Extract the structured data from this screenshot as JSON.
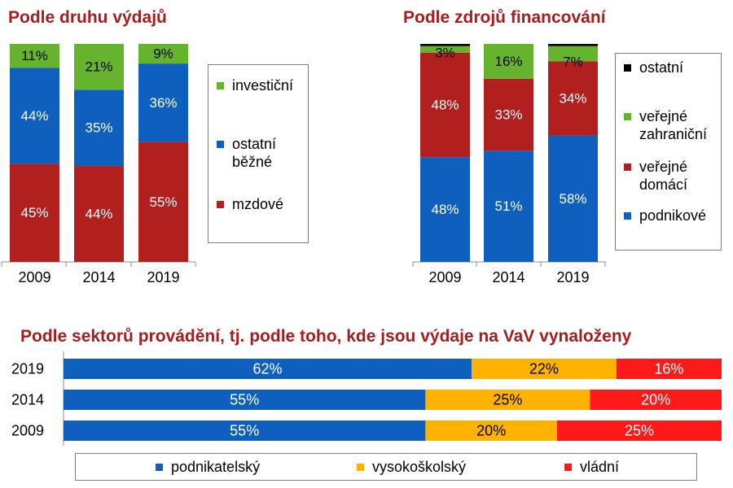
{
  "colors": {
    "title": "#a31f1f",
    "investicni": "#66b32e",
    "ostatni_bezne": "#0f5fbf",
    "mzdove": "#b21f1f",
    "ostatni": "#000000",
    "verejne_zahranicni": "#66b32e",
    "verejne_domaci": "#b21f1f",
    "podnikove": "#0f5fbf",
    "podnikatelsky": "#0f5fbf",
    "vysokoskolsky": "#ffb300",
    "vladni": "#ff1a1a"
  },
  "chart_data": [
    {
      "type": "bar",
      "stacked": true,
      "orientation": "vertical",
      "title": "Podle druhu výdajů",
      "categories": [
        "2009",
        "2014",
        "2019"
      ],
      "ylim": [
        0,
        100
      ],
      "legend_position": "right",
      "series": [
        {
          "name": "mzdové",
          "values": [
            45,
            44,
            55
          ],
          "labels": [
            "45%",
            "44%",
            "55%"
          ],
          "color": "#b21f1f"
        },
        {
          "name": "ostatní běžné",
          "values": [
            44,
            35,
            36
          ],
          "labels": [
            "44%",
            "35%",
            "36%"
          ],
          "color": "#0f5fbf"
        },
        {
          "name": "investiční",
          "values": [
            11,
            21,
            9
          ],
          "labels": [
            "11%",
            "21%",
            "9%"
          ],
          "color": "#66b32e"
        }
      ],
      "legend": [
        {
          "lines": [
            "investiční"
          ],
          "color": "#66b32e"
        },
        {
          "lines": [
            "ostatní",
            "běžné"
          ],
          "color": "#0f5fbf"
        },
        {
          "lines": [
            "mzdové"
          ],
          "color": "#b21f1f"
        }
      ]
    },
    {
      "type": "bar",
      "stacked": true,
      "orientation": "vertical",
      "title": "Podle zdrojů financování",
      "categories": [
        "2009",
        "2014",
        "2019"
      ],
      "ylim": [
        0,
        100
      ],
      "legend_position": "right",
      "series": [
        {
          "name": "podnikové",
          "values": [
            48,
            51,
            58
          ],
          "labels": [
            "48%",
            "51%",
            "58%"
          ],
          "color": "#0f5fbf"
        },
        {
          "name": "veřejné domácí",
          "values": [
            48,
            33,
            34
          ],
          "labels": [
            "48%",
            "33%",
            "34%"
          ],
          "color": "#b21f1f"
        },
        {
          "name": "veřejné zahraniční",
          "values": [
            3,
            16,
            7
          ],
          "labels": [
            "3%",
            "16%",
            "7%"
          ],
          "color": "#66b32e"
        },
        {
          "name": "ostatní",
          "values": [
            1,
            0,
            1
          ],
          "labels": [
            "",
            "",
            ""
          ],
          "color": "#000000"
        }
      ],
      "legend": [
        {
          "lines": [
            "ostatní"
          ],
          "color": "#000000"
        },
        {
          "lines": [
            "veřejné",
            "zahraniční"
          ],
          "color": "#66b32e"
        },
        {
          "lines": [
            "veřejné",
            "domácí"
          ],
          "color": "#b21f1f"
        },
        {
          "lines": [
            "podnikové"
          ],
          "color": "#0f5fbf"
        }
      ]
    },
    {
      "type": "bar",
      "stacked": true,
      "orientation": "horizontal",
      "title": "Podle sektorů provádění, tj. podle toho, kde jsou výdaje na VaV vynaloženy",
      "categories": [
        "2019",
        "2014",
        "2009"
      ],
      "xlim": [
        0,
        100
      ],
      "legend_position": "bottom",
      "series": [
        {
          "name": "podnikatelský",
          "values": [
            62,
            55,
            55
          ],
          "labels": [
            "62%",
            "55%",
            "55%"
          ],
          "color": "#0f5fbf"
        },
        {
          "name": "vysokoškolský",
          "values": [
            22,
            25,
            20
          ],
          "labels": [
            "22%",
            "25%",
            "20%"
          ],
          "color": "#ffb300"
        },
        {
          "name": "vládní",
          "values": [
            16,
            20,
            25
          ],
          "labels": [
            "16%",
            "20%",
            "25%"
          ],
          "color": "#ff1a1a"
        }
      ],
      "legend": [
        {
          "lines": [
            "podnikatelský"
          ],
          "color": "#0f5fbf"
        },
        {
          "lines": [
            "vysokoškolský"
          ],
          "color": "#ffb300"
        },
        {
          "lines": [
            "vládní"
          ],
          "color": "#ff1a1a"
        }
      ]
    }
  ]
}
